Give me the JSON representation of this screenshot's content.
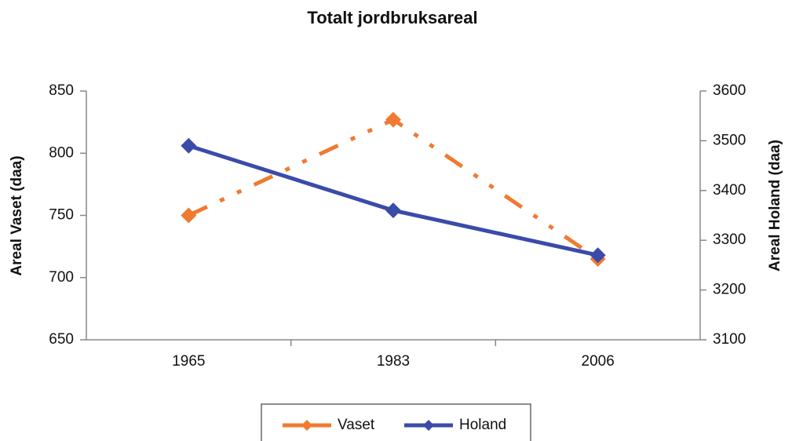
{
  "chart_data": {
    "type": "line",
    "title": "Totalt jordbruksareal",
    "ylabel": "Areal Vaset (daa)",
    "y2label": "Areal Holand (daa)",
    "categories": [
      "1965",
      "1983",
      "2006"
    ],
    "series": [
      {
        "name": "Vaset",
        "color": "#f07a30",
        "dash": "dash-dot-dot",
        "values": [
          750,
          827,
          715
        ]
      },
      {
        "name": "Holand",
        "color": "#3b4ba8",
        "dash": "solid",
        "axis": "y2",
        "values": [
          3490,
          3360,
          3270
        ]
      }
    ],
    "ylim": [
      650,
      850
    ],
    "yticks": [
      650,
      700,
      750,
      800,
      850
    ],
    "y2lim": [
      3100,
      3600
    ],
    "y2ticks": [
      3100,
      3200,
      3300,
      3400,
      3500,
      3600
    ],
    "grid": false,
    "legend": "bottom",
    "marker": "diamond"
  }
}
